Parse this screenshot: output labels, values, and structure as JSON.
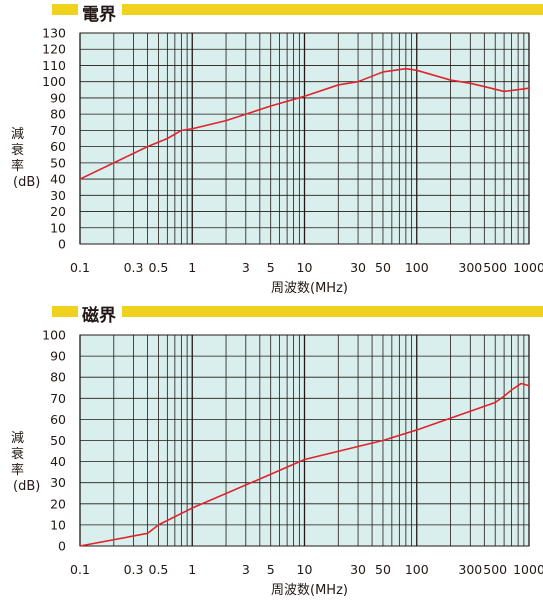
{
  "chart_data": [
    {
      "type": "line",
      "title": "電界",
      "xlabel": "周波数(MHz)",
      "ylabel": "減衰率(dB)",
      "ylabel_lines": [
        "減",
        "衰",
        "率",
        "(dB)"
      ],
      "x_scale": "log",
      "xlim": [
        0.1,
        1000
      ],
      "ylim": [
        0,
        130
      ],
      "x_ticks": [
        0.1,
        0.3,
        0.5,
        1,
        3,
        5,
        10,
        30,
        50,
        100,
        300,
        500,
        1000
      ],
      "x_tick_labels": [
        "0.1",
        "0.3",
        "0.5",
        "1",
        "3",
        "5",
        "10",
        "30",
        "50",
        "100",
        "300",
        "500",
        "1000"
      ],
      "y_ticks": [
        0,
        10,
        20,
        30,
        40,
        50,
        60,
        70,
        80,
        90,
        100,
        110,
        120,
        130
      ],
      "grid": true,
      "series": [
        {
          "color": "#e0242c",
          "x": [
            0.1,
            0.2,
            0.4,
            0.6,
            0.8,
            1,
            2,
            5,
            10,
            20,
            30,
            50,
            80,
            100,
            200,
            300,
            400,
            600,
            1000
          ],
          "y": [
            40,
            50,
            60,
            65,
            70,
            71,
            76,
            85,
            91,
            98,
            100,
            106,
            108,
            107,
            101,
            99,
            97,
            94,
            96
          ]
        }
      ]
    },
    {
      "type": "line",
      "title": "磁界",
      "xlabel": "周波数(MHz)",
      "ylabel": "減衰率(dB)",
      "ylabel_lines": [
        "減",
        "衰",
        "率",
        "(dB)"
      ],
      "x_scale": "log",
      "xlim": [
        0.1,
        1000
      ],
      "ylim": [
        0,
        100
      ],
      "x_ticks": [
        0.1,
        0.3,
        0.5,
        1,
        3,
        5,
        10,
        30,
        50,
        100,
        300,
        500,
        1000
      ],
      "x_tick_labels": [
        "0.1",
        "0.3",
        "0.5",
        "1",
        "3",
        "5",
        "10",
        "30",
        "50",
        "100",
        "300",
        "500",
        "1000"
      ],
      "y_ticks": [
        0,
        10,
        20,
        30,
        40,
        50,
        60,
        70,
        80,
        90,
        100
      ],
      "grid": true,
      "series": [
        {
          "color": "#e0242c",
          "x": [
            0.1,
            0.4,
            0.5,
            1,
            5,
            10,
            50,
            100,
            500,
            600,
            700,
            850,
            1000
          ],
          "y": [
            0,
            6,
            10,
            18,
            34,
            41,
            50,
            55,
            68,
            71,
            74,
            77,
            76
          ]
        }
      ]
    }
  ]
}
